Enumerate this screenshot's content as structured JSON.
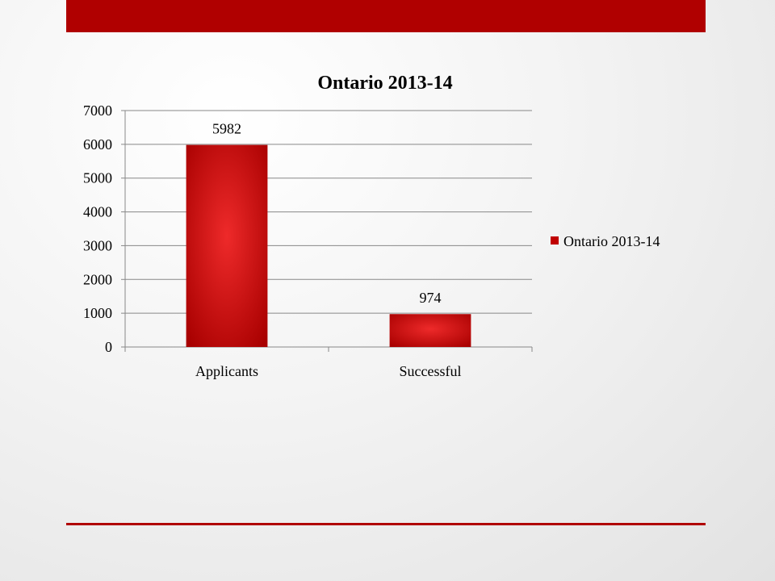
{
  "chart_data": {
    "type": "bar",
    "title": "Ontario 2013-14",
    "categories": [
      "Applicants",
      "Successful"
    ],
    "series": [
      {
        "name": "Ontario 2013-14",
        "values": [
          5982,
          974
        ],
        "color": "#c00000"
      }
    ],
    "data_labels": [
      "5982",
      "974"
    ],
    "ylim": [
      0,
      7000
    ],
    "y_ticks": [
      0,
      1000,
      2000,
      3000,
      4000,
      5000,
      6000,
      7000
    ],
    "xlabel": "",
    "ylabel": "",
    "grid": true,
    "legend_position": "right"
  },
  "colors": {
    "accent": "#b00000",
    "bar": "#c00000",
    "bar_highlight": "#ee2a2a",
    "gridline": "#888888"
  }
}
